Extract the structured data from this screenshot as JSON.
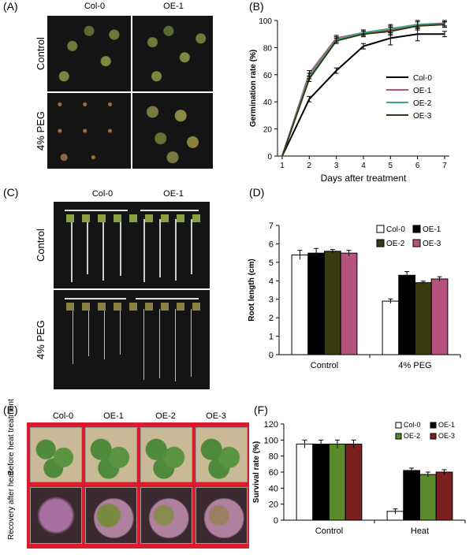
{
  "panels": {
    "A": {
      "label": "(A)",
      "columns": [
        "Col-0",
        "OE-1"
      ],
      "rows": [
        "Control",
        "4% PEG"
      ]
    },
    "C": {
      "label": "(C)",
      "columns": [
        "Col-0",
        "OE-1"
      ],
      "rows": [
        "Control",
        "4% PEG"
      ]
    },
    "E": {
      "label": "(E)",
      "columns": [
        "Col-0",
        "OE-1",
        "OE-2",
        "OE-3"
      ],
      "rows": [
        "Before heat treatment",
        "Recovery after heat"
      ]
    },
    "B": {
      "label": "(B)"
    },
    "D": {
      "label": "(D)"
    },
    "F": {
      "label": "(F)"
    }
  },
  "chart_data": [
    {
      "id": "B",
      "type": "line",
      "xlabel": "Days after treatment",
      "ylabel": "Germination rate (%)",
      "x": [
        1,
        2,
        3,
        4,
        5,
        6,
        7
      ],
      "ylim": [
        0,
        100
      ],
      "yticks": [
        0,
        20,
        40,
        60,
        80,
        100
      ],
      "legend_position": "right",
      "series": [
        {
          "name": "Col-0",
          "color": "#000000",
          "values": [
            0,
            42,
            63,
            81,
            87,
            90,
            90
          ],
          "err": [
            0,
            2,
            2,
            2,
            5,
            5,
            2
          ]
        },
        {
          "name": "OE-1",
          "color": "#b5527e",
          "values": [
            0,
            61,
            87,
            91,
            93,
            97,
            98
          ],
          "err": [
            0,
            2,
            2,
            2,
            3,
            3,
            2
          ]
        },
        {
          "name": "OE-2",
          "color": "#3aaa8a",
          "values": [
            0,
            59,
            86,
            91,
            94,
            97,
            97
          ],
          "err": [
            0,
            2,
            2,
            2,
            3,
            3,
            2
          ]
        },
        {
          "name": "OE-3",
          "color": "#3a3a10",
          "values": [
            0,
            57,
            85,
            90,
            92,
            96,
            97
          ],
          "err": [
            0,
            2,
            2,
            2,
            3,
            3,
            2
          ]
        }
      ]
    },
    {
      "id": "D",
      "type": "bar",
      "ylabel": "Root length (cm)",
      "categories": [
        "Control",
        "4% PEG"
      ],
      "ylim": [
        0,
        7
      ],
      "yticks": [
        0,
        1,
        2,
        3,
        4,
        5,
        6,
        7
      ],
      "legend_position": "top-right",
      "series": [
        {
          "name": "Col-0",
          "color": "#ffffff",
          "values": [
            5.4,
            2.9
          ],
          "err": [
            0.25,
            0.12
          ]
        },
        {
          "name": "OE-1",
          "color": "#000000",
          "values": [
            5.5,
            4.3
          ],
          "err": [
            0.25,
            0.2
          ]
        },
        {
          "name": "OE-2",
          "color": "#3a3a10",
          "values": [
            5.6,
            3.9
          ],
          "err": [
            0.1,
            0.08
          ]
        },
        {
          "name": "OE-3",
          "color": "#b5527e",
          "values": [
            5.5,
            4.1
          ],
          "err": [
            0.15,
            0.12
          ]
        }
      ]
    },
    {
      "id": "F",
      "type": "bar",
      "ylabel": "Survival rate (%)",
      "categories": [
        "Control",
        "Heat"
      ],
      "ylim": [
        0,
        120
      ],
      "yticks": [
        0,
        20,
        40,
        60,
        80,
        100,
        120
      ],
      "legend_position": "top-right",
      "series": [
        {
          "name": "Col-0",
          "color": "#ffffff",
          "values": [
            95,
            11
          ],
          "err": [
            5,
            3
          ]
        },
        {
          "name": "OE-1",
          "color": "#000000",
          "values": [
            95,
            62
          ],
          "err": [
            5,
            3
          ]
        },
        {
          "name": "OE-2",
          "color": "#5a8a2a",
          "values": [
            95,
            57
          ],
          "err": [
            5,
            3
          ]
        },
        {
          "name": "OE-3",
          "color": "#7a2020",
          "values": [
            95,
            60
          ],
          "err": [
            5,
            3
          ]
        }
      ]
    }
  ]
}
